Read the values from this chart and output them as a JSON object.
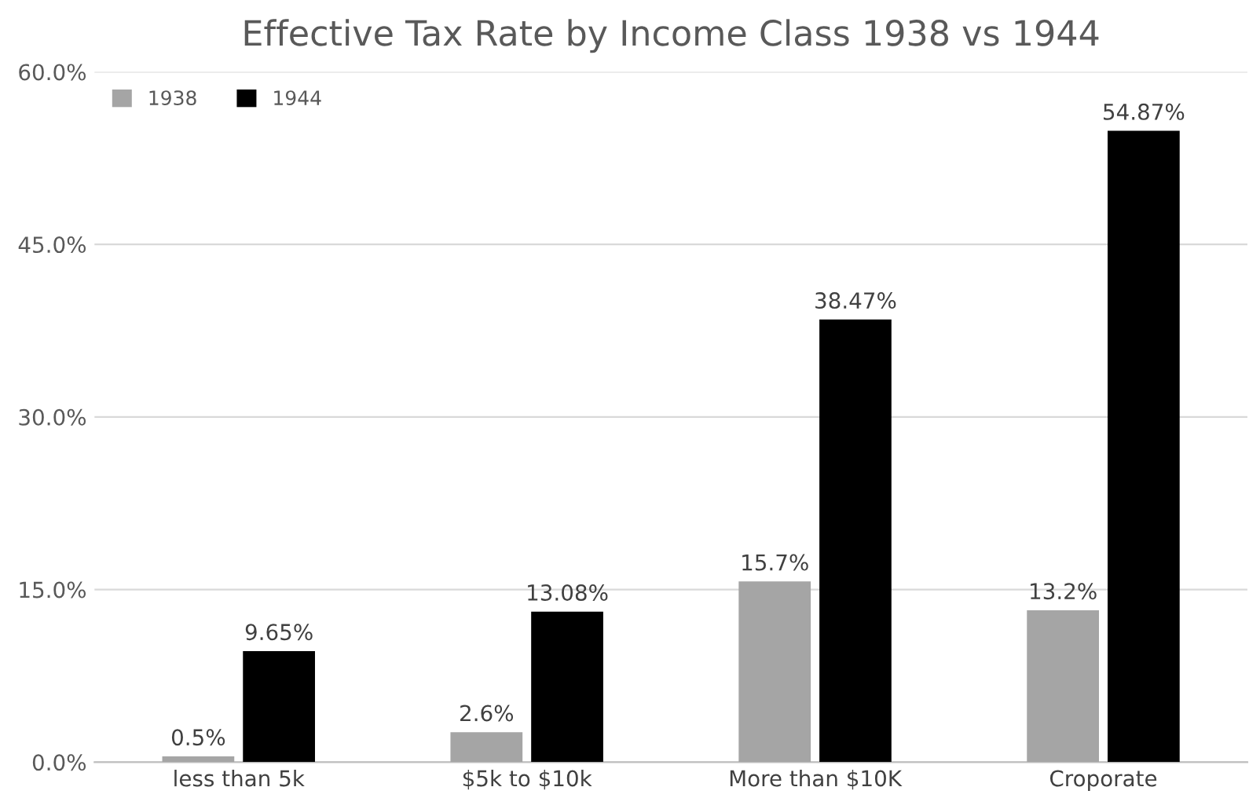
{
  "chart_data": {
    "type": "bar",
    "title": "Effective Tax Rate by Income Class 1938 vs 1944",
    "categories": [
      "less than 5k",
      "$5k to $10k",
      "More than $10K",
      "Croporate"
    ],
    "series": [
      {
        "name": "1938",
        "color": "#a5a5a5",
        "values": [
          0.5,
          2.6,
          15.7,
          13.2
        ],
        "value_labels": [
          "0.5%",
          "2.6%",
          "15.7%",
          "13.2%"
        ]
      },
      {
        "name": "1944",
        "color": "#000000",
        "values": [
          9.65,
          13.08,
          38.47,
          54.87
        ],
        "value_labels": [
          "9.65%",
          "13.08%",
          "38.47%",
          "54.87%"
        ]
      }
    ],
    "ylim": [
      0,
      60
    ],
    "yticks": [
      {
        "value": 0,
        "label": "0.0%"
      },
      {
        "value": 15,
        "label": "15.0%"
      },
      {
        "value": 30,
        "label": "30.0%"
      },
      {
        "value": 45,
        "label": "45.0%"
      },
      {
        "value": 60,
        "label": "60.0%"
      }
    ],
    "grid": "y",
    "legend": "top left"
  }
}
